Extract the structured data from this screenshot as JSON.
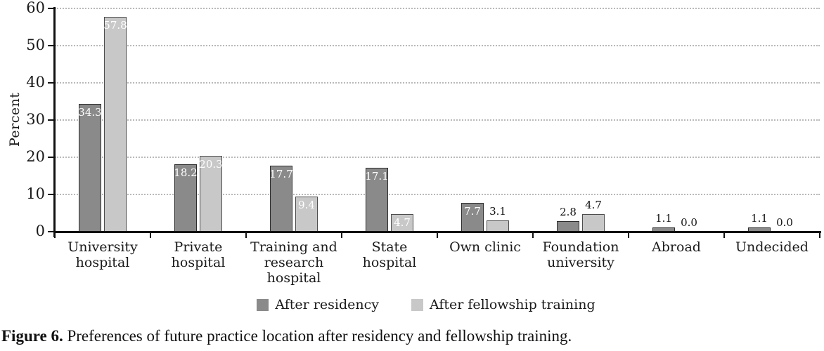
{
  "figure": {
    "caption_label": "Figure 6.",
    "caption_text": " Preferences of future practice location after residency and fellowship training."
  },
  "chart_data": {
    "type": "bar",
    "title": "",
    "xlabel": "",
    "ylabel": "Percent",
    "ylim": [
      0,
      60
    ],
    "yticks": [
      0,
      10,
      20,
      30,
      40,
      50,
      60
    ],
    "grid": "horizontal-dotted",
    "legend_position": "bottom",
    "colors": {
      "axis": "#111111",
      "gridline": "#b9b9b9",
      "series_dark_fill": "#8a8a8a",
      "series_dark_border": "#2d2d2d",
      "series_light_fill": "#c8c8c8",
      "series_light_border": "#4d4d4d",
      "inside_label": "#ffffff",
      "above_label": "#111111"
    },
    "categories": [
      {
        "lines": [
          "University",
          "hospital"
        ]
      },
      {
        "lines": [
          "Private",
          "hospital"
        ]
      },
      {
        "lines": [
          "Training and",
          "research",
          "hospital"
        ]
      },
      {
        "lines": [
          "State",
          "hospital"
        ]
      },
      {
        "lines": [
          "Own clinic"
        ]
      },
      {
        "lines": [
          "Foundation",
          "university"
        ]
      },
      {
        "lines": [
          "Abroad"
        ]
      },
      {
        "lines": [
          "Undecided"
        ]
      }
    ],
    "series": [
      {
        "name": "After residency",
        "fill": "#8a8a8a",
        "border": "#2d2d2d",
        "values": [
          34.3,
          18.2,
          17.7,
          17.1,
          7.7,
          2.8,
          1.1,
          1.1
        ],
        "label_placement": [
          "inside",
          "inside",
          "inside",
          "inside",
          "inside",
          "above",
          "above",
          "above"
        ]
      },
      {
        "name": "After fellowship training",
        "fill": "#c8c8c8",
        "border": "#4d4d4d",
        "values": [
          57.8,
          20.3,
          9.4,
          4.7,
          3.1,
          4.7,
          0.0,
          0.0
        ],
        "label_placement": [
          "inside",
          "inside",
          "inside",
          "inside",
          "above",
          "above",
          "above",
          "above"
        ]
      }
    ]
  }
}
